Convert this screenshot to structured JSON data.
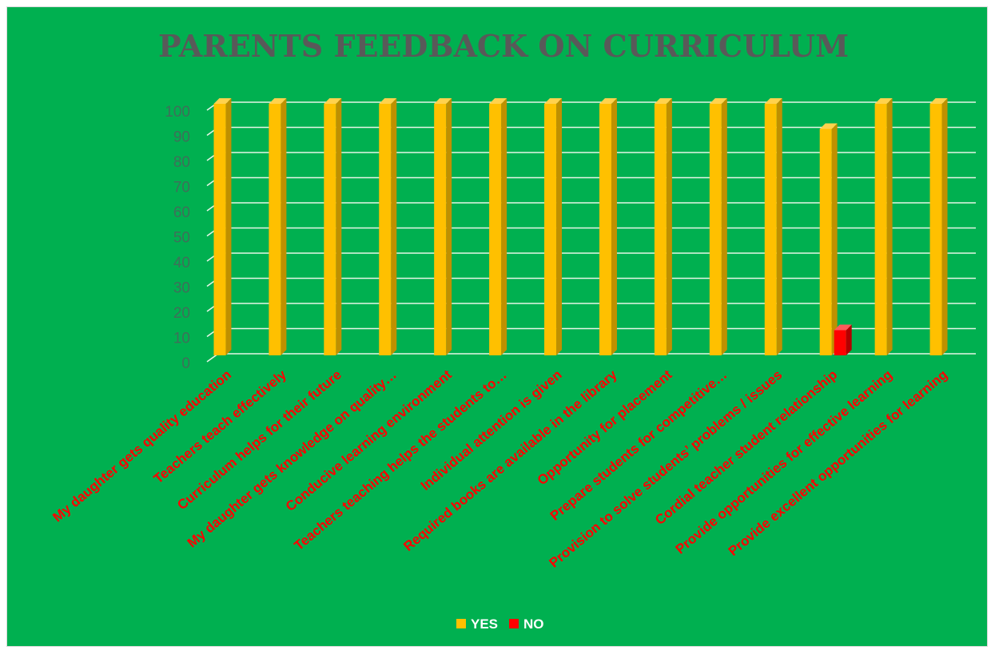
{
  "colors": {
    "background": "#00b050",
    "title": "#595959",
    "yes": "#ffc000",
    "yes_side": "#bf9000",
    "yes_top": "#ffd24d",
    "no": "#ff0000",
    "no_side": "#b30000",
    "no_top": "#ff5a5a",
    "gridline": "#e6f5e6",
    "axis_labels": "#3f6f5a",
    "category_labels": "#ff0000",
    "legend_text": "#ffffff"
  },
  "chart_data": {
    "type": "bar",
    "style": "3d-clustered-column",
    "title": "PARENTS FEEDBACK ON CURRICULUM",
    "categories": [
      "My daughter gets quality education",
      "Teachers teach effectively",
      "Curriculum helps for their future",
      "My daughter gets knowledge on quality…",
      "Conducive learning environment",
      "Teachers teaching helps the students to…",
      "Individual attention is given",
      "Required books are available in the library",
      "Opportunity for placement",
      "Prepare students for competitive…",
      "Provision to solve students’ problems / issues",
      "Cordial teacher student relationship",
      "Provide opportunities for effective learning",
      "Provide excellent opportunities for learning"
    ],
    "series": [
      {
        "name": "YES",
        "values": [
          100,
          100,
          100,
          100,
          100,
          100,
          100,
          100,
          100,
          100,
          100,
          90,
          100,
          100
        ]
      },
      {
        "name": "NO",
        "values": [
          0,
          0,
          0,
          0,
          0,
          0,
          0,
          0,
          0,
          0,
          0,
          10,
          0,
          0
        ]
      }
    ],
    "ylim": [
      0,
      100
    ],
    "yticks": [
      0,
      10,
      20,
      30,
      40,
      50,
      60,
      70,
      80,
      90,
      100
    ],
    "grid": true,
    "legend": "bottom"
  }
}
